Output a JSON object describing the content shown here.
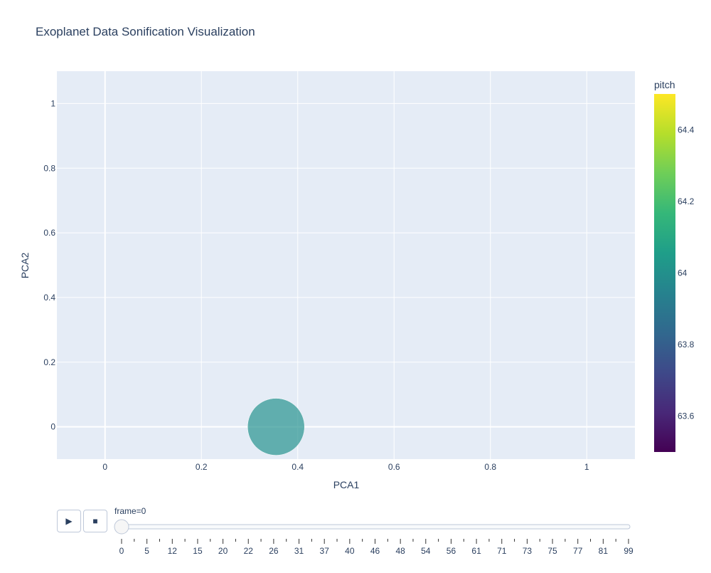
{
  "colors": {
    "plot_bg": "#e5ecf6",
    "grid": "#ffffff",
    "text": "#2a3f5f",
    "marker": "#21908c"
  },
  "controls": {
    "play_icon": "play-icon",
    "stop_icon": "stop-icon",
    "play_glyph": "▶",
    "stop_glyph": "■",
    "current_label": "frame=0"
  },
  "slider": {
    "labels": [
      "0",
      "5",
      "12",
      "15",
      "20",
      "22",
      "26",
      "31",
      "37",
      "40",
      "46",
      "48",
      "54",
      "56",
      "61",
      "71",
      "73",
      "75",
      "77",
      "81",
      "99"
    ],
    "active_index": 0
  },
  "chart_data": {
    "type": "scatter",
    "title": "Exoplanet Data Sonification Visualization",
    "xlabel": "PCA1",
    "ylabel": "PCA2",
    "xlim": [
      -0.1,
      1.1
    ],
    "ylim": [
      -0.1,
      1.1
    ],
    "xticks": [
      0,
      0.2,
      0.4,
      0.6,
      0.8,
      1
    ],
    "yticks": [
      0,
      0.2,
      0.4,
      0.6,
      0.8,
      1
    ],
    "xtick_labels": [
      "0",
      "0.2",
      "0.4",
      "0.6",
      "0.8",
      "1"
    ],
    "ytick_labels": [
      "0",
      "0.2",
      "0.4",
      "0.6",
      "0.8",
      "1"
    ],
    "grid": true,
    "points": [
      {
        "x": 0.355,
        "y": 0.0,
        "pitch": 64.0
      }
    ],
    "colorbar": {
      "title": "pitch",
      "colorscale": "Viridis",
      "range": [
        63.5,
        64.5
      ],
      "ticks": [
        63.6,
        63.8,
        64,
        64.2,
        64.4
      ],
      "tick_labels": [
        "63.6",
        "63.8",
        "64",
        "64.2",
        "64.4"
      ]
    }
  }
}
